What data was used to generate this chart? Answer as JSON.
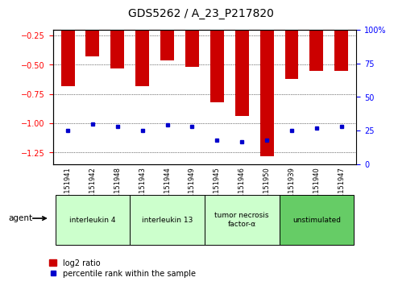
{
  "title": "GDS5262 / A_23_P217820",
  "samples": [
    "GSM1151941",
    "GSM1151942",
    "GSM1151948",
    "GSM1151943",
    "GSM1151944",
    "GSM1151949",
    "GSM1151945",
    "GSM1151946",
    "GSM1151950",
    "GSM1151939",
    "GSM1151940",
    "GSM1151947"
  ],
  "log2_ratio": [
    -0.68,
    -0.43,
    -0.53,
    -0.68,
    -0.46,
    -0.52,
    -0.82,
    -0.94,
    -1.28,
    -0.62,
    -0.55,
    -0.55
  ],
  "percentile_rank": [
    25,
    30,
    28,
    25,
    29,
    28,
    18,
    17,
    18,
    25,
    27,
    28
  ],
  "groups": [
    {
      "label": "interleukin 4",
      "start": 0,
      "end": 3,
      "color": "#ccffcc"
    },
    {
      "label": "interleukin 13",
      "start": 3,
      "end": 6,
      "color": "#ccffcc"
    },
    {
      "label": "tumor necrosis\nfactor-α",
      "start": 6,
      "end": 9,
      "color": "#ccffcc"
    },
    {
      "label": "unstimulated",
      "start": 9,
      "end": 12,
      "color": "#66cc66"
    }
  ],
  "ylim_left": [
    -1.35,
    -0.2
  ],
  "ylim_right": [
    0,
    100
  ],
  "yticks_left": [
    -1.25,
    -1.0,
    -0.75,
    -0.5,
    -0.25
  ],
  "yticks_right": [
    0,
    25,
    50,
    75,
    100
  ],
  "bar_color": "#cc0000",
  "dot_color": "#0000cc",
  "bar_width": 0.55,
  "background_color": "#ffffff",
  "plot_bg": "#ffffff",
  "legend_items": [
    "log2 ratio",
    "percentile rank within the sample"
  ],
  "legend_colors": [
    "#cc0000",
    "#0000cc"
  ],
  "agent_label": "agent",
  "title_fontsize": 10,
  "tick_fontsize": 7,
  "sample_fontsize": 6
}
